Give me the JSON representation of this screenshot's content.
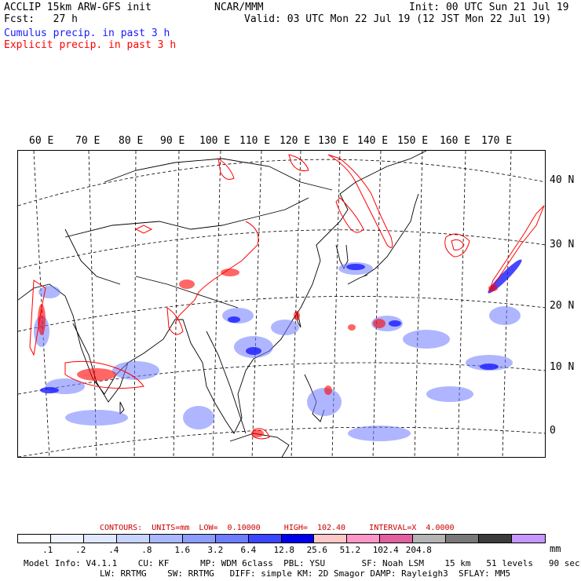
{
  "header": {
    "title_left": "ACCLIP 15km ARW-GFS init",
    "forecast": "Fcst:   27 h",
    "center_label": "NCAR/MMM",
    "init_time": "Init: 00 UTC Sun 21 Jul 19",
    "valid_time": "Valid: 03 UTC Mon 22 Jul 19 (12 JST Mon 22 Jul 19)",
    "legend_cumulus": "Cumulus precip. in past 3 h",
    "legend_explicit": "Explicit precip. in past 3 h"
  },
  "colors": {
    "cumulus": "#1a1aff",
    "explicit": "#ff0000",
    "contour_text": "#cc0000"
  },
  "map": {
    "longitude_labels": [
      "60 E",
      "70 E",
      "80 E",
      "90 E",
      "100 E",
      "110 E",
      "120 E",
      "130 E",
      "140 E",
      "150 E",
      "160 E",
      "170 E"
    ],
    "latitude_labels": [
      "40 N",
      "30 N",
      "20 N",
      "10 N",
      "0"
    ]
  },
  "contours": {
    "line": "CONTOURS:  UNITS=mm  LOW=  0.10000     HIGH=  102.40     INTERVAL=X  4.0000"
  },
  "colorbar": {
    "colors": [
      "#ffffff",
      "#f0f4ff",
      "#e0e8ff",
      "#c8d4ff",
      "#aab8ff",
      "#8c9cff",
      "#6e7cff",
      "#3c46ff",
      "#0000ee",
      "#ffc8c8",
      "#ff96c8",
      "#e060a0",
      "#b4b4b4",
      "#787878",
      "#3c3c3c",
      "#c896ff"
    ],
    "ticks": [
      ".1",
      ".2",
      ".4",
      ".8",
      "1.6",
      "3.2",
      "6.4",
      "12.8",
      "25.6",
      "51.2",
      "102.4",
      "204.8"
    ],
    "unit": "mm"
  },
  "footer": {
    "line1": "Model Info: V4.1.1    CU: KF      MP: WDM 6class  PBL: YSU       SF: Noah LSM    15 km   51 levels   90 sec",
    "line2": "LW: RRTMG    SW: RRTMG   DIFF: simple KM: 2D Smagor DAMP: Rayleigh3  SFLAY: MM5"
  }
}
